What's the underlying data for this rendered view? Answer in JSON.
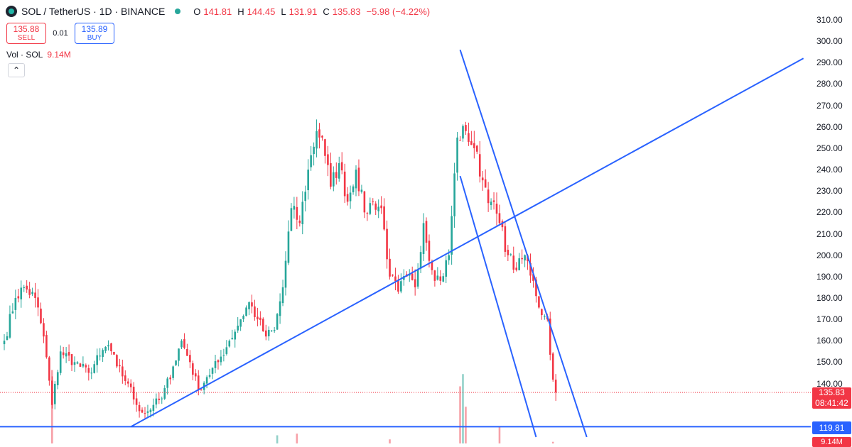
{
  "header": {
    "symbol": "SOL / TetherUS · 1D · BINANCE",
    "ohlc": {
      "o_label": "O",
      "o": "141.81",
      "h_label": "H",
      "h": "144.45",
      "l_label": "L",
      "l": "131.91",
      "c_label": "C",
      "c": "135.83",
      "change": "−5.98 (−4.22%)"
    }
  },
  "trade": {
    "sell_price": "135.88",
    "sell_label": "SELL",
    "spread": "0.01",
    "buy_price": "135.89",
    "buy_label": "BUY"
  },
  "volume": {
    "label": "Vol · SOL",
    "value": "9.14M"
  },
  "price_axis": {
    "ticks": [
      "310.00",
      "300.00",
      "290.00",
      "280.00",
      "270.00",
      "260.00",
      "250.00",
      "240.00",
      "230.00",
      "220.00",
      "210.00",
      "200.00",
      "190.00",
      "180.00",
      "170.00",
      "160.00",
      "150.00",
      "140.00"
    ],
    "last_price": "135.83",
    "countdown": "08:41:42",
    "hline_label": "119.81",
    "volume_label": "9.14M"
  },
  "colors": {
    "up": "#26a69a",
    "down": "#f23645",
    "drawing": "#2962ff",
    "volume_up": "#92d1c9",
    "volume_down": "#f7a1a8"
  },
  "chart_data": {
    "type": "candlestick",
    "symbol": "SOL / TetherUS",
    "interval": "1D",
    "exchange": "BINANCE",
    "ylim": [
      115,
      315
    ],
    "last_price": 135.83,
    "horizontal_line": 119.81,
    "anchors": [
      {
        "i": 0,
        "p": 160
      },
      {
        "i": 4,
        "p": 180
      },
      {
        "i": 7,
        "p": 185
      },
      {
        "i": 11,
        "p": 180
      },
      {
        "i": 14,
        "p": 162
      },
      {
        "i": 17,
        "p": 130
      },
      {
        "i": 20,
        "p": 155
      },
      {
        "i": 25,
        "p": 150
      },
      {
        "i": 30,
        "p": 145
      },
      {
        "i": 34,
        "p": 153
      },
      {
        "i": 37,
        "p": 158
      },
      {
        "i": 40,
        "p": 148
      },
      {
        "i": 44,
        "p": 140
      },
      {
        "i": 47,
        "p": 130
      },
      {
        "i": 50,
        "p": 126
      },
      {
        "i": 53,
        "p": 130
      },
      {
        "i": 56,
        "p": 133
      },
      {
        "i": 60,
        "p": 148
      },
      {
        "i": 63,
        "p": 160
      },
      {
        "i": 66,
        "p": 150
      },
      {
        "i": 69,
        "p": 137
      },
      {
        "i": 72,
        "p": 143
      },
      {
        "i": 76,
        "p": 150
      },
      {
        "i": 80,
        "p": 160
      },
      {
        "i": 84,
        "p": 170
      },
      {
        "i": 87,
        "p": 178
      },
      {
        "i": 90,
        "p": 170
      },
      {
        "i": 93,
        "p": 162
      },
      {
        "i": 96,
        "p": 165
      },
      {
        "i": 99,
        "p": 185
      },
      {
        "i": 102,
        "p": 222
      },
      {
        "i": 105,
        "p": 215
      },
      {
        "i": 108,
        "p": 240
      },
      {
        "i": 111,
        "p": 258
      },
      {
        "i": 113,
        "p": 255
      },
      {
        "i": 116,
        "p": 232
      },
      {
        "i": 119,
        "p": 243
      },
      {
        "i": 122,
        "p": 225
      },
      {
        "i": 125,
        "p": 240
      },
      {
        "i": 128,
        "p": 220
      },
      {
        "i": 131,
        "p": 225
      },
      {
        "i": 134,
        "p": 222
      },
      {
        "i": 137,
        "p": 190
      },
      {
        "i": 140,
        "p": 183
      },
      {
        "i": 143,
        "p": 190
      },
      {
        "i": 146,
        "p": 185
      },
      {
        "i": 149,
        "p": 215
      },
      {
        "i": 152,
        "p": 193
      },
      {
        "i": 155,
        "p": 188
      },
      {
        "i": 158,
        "p": 200
      },
      {
        "i": 161,
        "p": 255
      },
      {
        "i": 164,
        "p": 258
      },
      {
        "i": 167,
        "p": 250
      },
      {
        "i": 170,
        "p": 235
      },
      {
        "i": 173,
        "p": 225
      },
      {
        "i": 176,
        "p": 215
      },
      {
        "i": 179,
        "p": 200
      },
      {
        "i": 182,
        "p": 193
      },
      {
        "i": 185,
        "p": 200
      },
      {
        "i": 188,
        "p": 188
      },
      {
        "i": 191,
        "p": 172
      },
      {
        "i": 193,
        "p": 170
      },
      {
        "i": 195,
        "p": 141.81
      },
      {
        "i": 196,
        "p": 135.83
      }
    ],
    "volume_spikes": [
      {
        "i": 17,
        "v": 0.9
      },
      {
        "i": 162,
        "v": 0.7
      },
      {
        "i": 163,
        "v": 0.85
      },
      {
        "i": 164,
        "v": 0.45
      },
      {
        "i": 176,
        "v": 0.2
      },
      {
        "i": 97,
        "v": 0.1
      },
      {
        "i": 104,
        "v": 0.12
      },
      {
        "i": 137,
        "v": 0.05
      },
      {
        "i": 195,
        "v": 0.02
      }
    ],
    "trendlines": [
      {
        "name": "ascending-support",
        "from_i": 45,
        "from_p": 119.81,
        "to_i": 284,
        "to_p": 292
      },
      {
        "name": "channel-upper",
        "from_i": 162,
        "from_p": 296,
        "to_i": 207,
        "to_p": 115
      },
      {
        "name": "channel-lower",
        "from_i": 162,
        "from_p": 237,
        "to_i": 189,
        "to_p": 115
      }
    ]
  }
}
